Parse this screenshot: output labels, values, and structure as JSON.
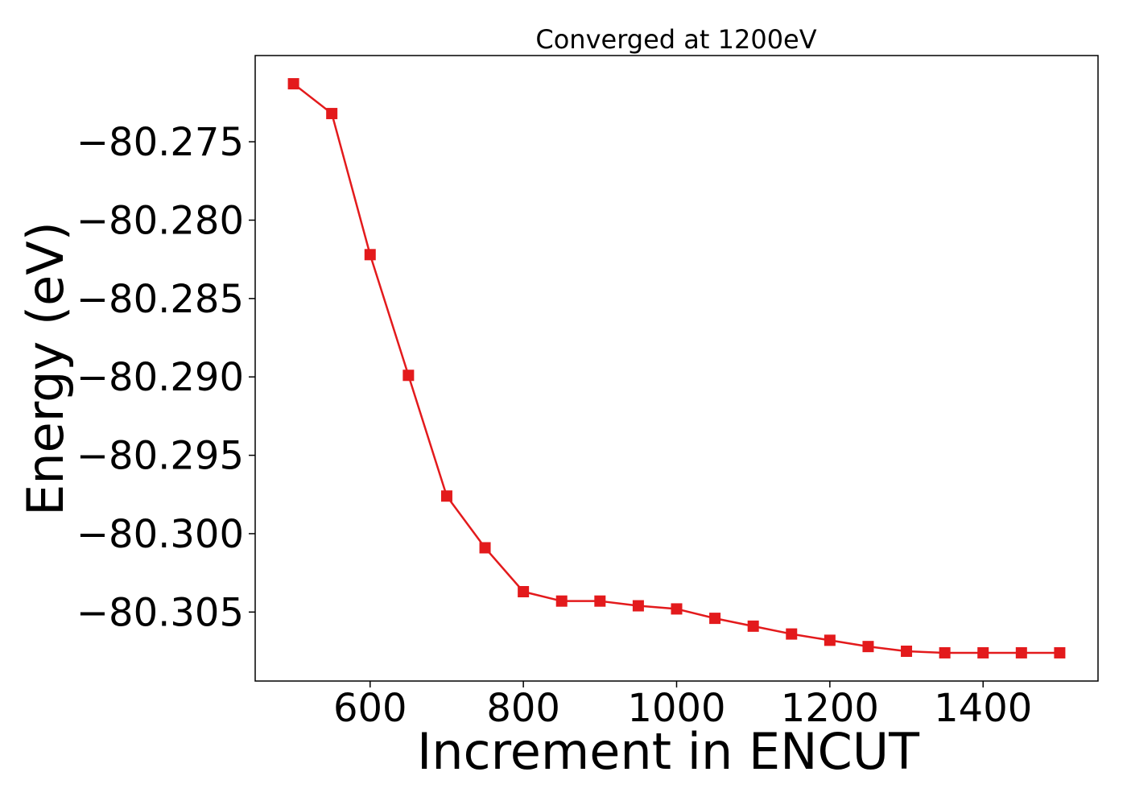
{
  "chart_data": {
    "type": "line",
    "title": "Converged at 1200eV",
    "xlabel": "Increment in ENCUT",
    "ylabel": "Energy (eV)",
    "xlim": [
      450,
      1550
    ],
    "ylim": [
      -80.3094,
      -80.2695
    ],
    "xticks": [
      600,
      800,
      1000,
      1200,
      1400
    ],
    "yticks": [
      -80.275,
      -80.28,
      -80.285,
      -80.29,
      -80.295,
      -80.3,
      -80.305
    ],
    "ytick_labels": [
      "−80.275",
      "−80.280",
      "−80.285",
      "−80.290",
      "−80.295",
      "−80.300",
      "−80.305"
    ],
    "grid": false,
    "legend": "none",
    "series": [
      {
        "color": "#e31a1c",
        "marker": "square",
        "x": [
          500,
          550,
          600,
          650,
          700,
          750,
          800,
          850,
          900,
          950,
          1000,
          1050,
          1100,
          1150,
          1200,
          1250,
          1300,
          1350,
          1400,
          1450,
          1500
        ],
        "y": [
          -80.2713,
          -80.2732,
          -80.2822,
          -80.2899,
          -80.2976,
          -80.3009,
          -80.3037,
          -80.3043,
          -80.3043,
          -80.3046,
          -80.3048,
          -80.3054,
          -80.3059,
          -80.3064,
          -80.3068,
          -80.3072,
          -80.3075,
          -80.3076,
          -80.3076,
          -80.3076,
          -80.3076
        ]
      }
    ]
  }
}
